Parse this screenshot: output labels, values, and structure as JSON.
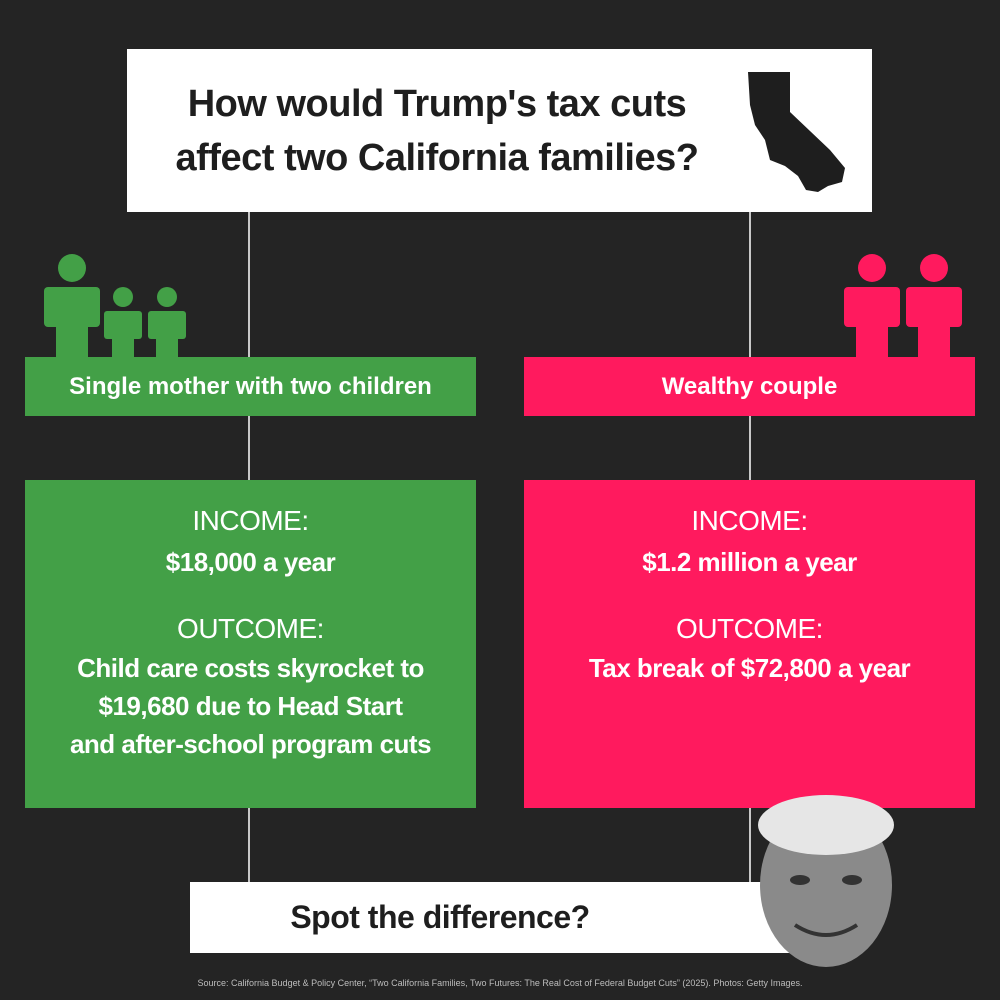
{
  "header": {
    "title_lines": [
      "How would Trump's tax cuts",
      "affect two California families?"
    ]
  },
  "families": [
    {
      "label": "Single mother with two children",
      "income_label": "INCOME:",
      "income": "$18,000 a year",
      "outcome_label": "OUTCOME:",
      "outcome_lines": [
        "Child care costs skyrocket to",
        "$19,680 due to Head Start",
        "and after-school program cuts"
      ]
    },
    {
      "label": "Wealthy couple",
      "income_label": "INCOME:",
      "income": "$1.2 million a year",
      "outcome_label": "OUTCOME:",
      "outcome_lines": [
        "Tax break of $72,800 a year"
      ]
    }
  ],
  "footer": {
    "question": "Spot the difference?",
    "source": "Source: California Budget & Policy Center, “Two California Families, Two Futures: The Real Cost of Federal Budget Cuts” (2025). Photos: Getty Images."
  }
}
